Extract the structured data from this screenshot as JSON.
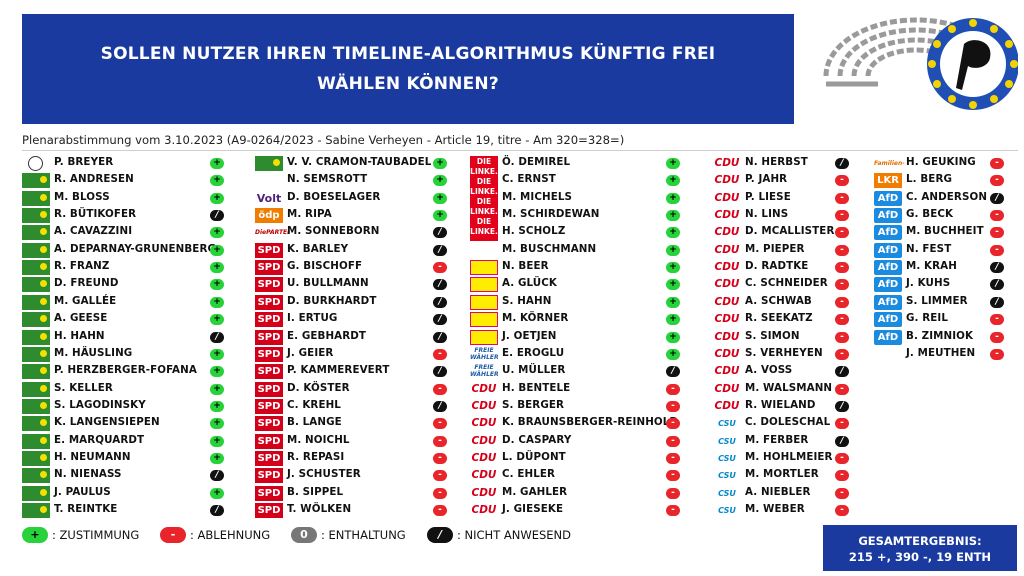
{
  "header": {
    "title": "SOLLEN NUTZER IHREN TIMELINE-ALGORITHMUS KÜNFTIG FREI WÄHLEN KÖNNEN?",
    "subtitle": "Plenarabstimmung vom 3.10.2023 (A9-0264/2023 - Sabine Verheyen - Article 19, titre - Am 320=328=)"
  },
  "colors": {
    "title_bg": "#1a3aa0",
    "yes": "#27d23a",
    "no": "#e8252a",
    "abstain": "#777777",
    "absent": "#111111"
  },
  "vote_symbols": {
    "yes": "+",
    "no": "-",
    "abstain": "0",
    "absent": "/"
  },
  "columns": [
    [
      {
        "name": "P. BREYER",
        "party": "Piraten",
        "vote": "yes"
      },
      {
        "name": "R. ANDRESEN",
        "party": "Grüne",
        "vote": "yes"
      },
      {
        "name": "M. BLOSS",
        "party": "Grüne",
        "vote": "yes"
      },
      {
        "name": "R. BÜTIKOFER",
        "party": "Grüne",
        "vote": "absent"
      },
      {
        "name": "A. CAVAZZINI",
        "party": "Grüne",
        "vote": "yes"
      },
      {
        "name": "A. DEPARNAY-GRUNENBERG",
        "party": "Grüne",
        "vote": "yes"
      },
      {
        "name": "R. FRANZ",
        "party": "Grüne",
        "vote": "yes"
      },
      {
        "name": "D. FREUND",
        "party": "Grüne",
        "vote": "yes"
      },
      {
        "name": "M. GALLÉE",
        "party": "Grüne",
        "vote": "yes"
      },
      {
        "name": "A. GEESE",
        "party": "Grüne",
        "vote": "yes"
      },
      {
        "name": "H. HAHN",
        "party": "Grüne",
        "vote": "absent"
      },
      {
        "name": "M. HÄUSLING",
        "party": "Grüne",
        "vote": "yes"
      },
      {
        "name": "P. HERZBERGER-FOFANA",
        "party": "Grüne",
        "vote": "yes"
      },
      {
        "name": "S. KELLER",
        "party": "Grüne",
        "vote": "yes"
      },
      {
        "name": "S. LAGODINSKY",
        "party": "Grüne",
        "vote": "yes"
      },
      {
        "name": "K. LANGENSIEPEN",
        "party": "Grüne",
        "vote": "yes"
      },
      {
        "name": "E. MARQUARDT",
        "party": "Grüne",
        "vote": "yes"
      },
      {
        "name": "H. NEUMANN",
        "party": "Grüne",
        "vote": "yes"
      },
      {
        "name": "N. NIENASS",
        "party": "Grüne",
        "vote": "absent"
      },
      {
        "name": "J. PAULUS",
        "party": "Grüne",
        "vote": "yes"
      },
      {
        "name": "T. REINTKE",
        "party": "Grüne",
        "vote": "absent"
      }
    ],
    [
      {
        "name": "V. V. CRAMON-TAUBADEL",
        "party": "Grüne",
        "vote": "yes"
      },
      {
        "name": "N. SEMSROTT",
        "party": "",
        "vote": "yes"
      },
      {
        "name": "D. BOESELAGER",
        "party": "Volt",
        "vote": "yes"
      },
      {
        "name": "M. RIPA",
        "party": "ödp",
        "vote": "yes"
      },
      {
        "name": "M. SONNEBORN",
        "party": "PARTEI",
        "vote": "absent"
      },
      {
        "name": "K. BARLEY",
        "party": "SPD",
        "vote": "absent"
      },
      {
        "name": "G. BISCHOFF",
        "party": "SPD",
        "vote": "no"
      },
      {
        "name": "U. BULLMANN",
        "party": "SPD",
        "vote": "absent"
      },
      {
        "name": "D. BURKHARDT",
        "party": "SPD",
        "vote": "absent"
      },
      {
        "name": "I. ERTUG",
        "party": "SPD",
        "vote": "absent"
      },
      {
        "name": "E. GEBHARDT",
        "party": "SPD",
        "vote": "absent"
      },
      {
        "name": "J. GEIER",
        "party": "SPD",
        "vote": "no"
      },
      {
        "name": "P. KAMMEREVERT",
        "party": "SPD",
        "vote": "absent"
      },
      {
        "name": "D. KÖSTER",
        "party": "SPD",
        "vote": "no"
      },
      {
        "name": "C. KREHL",
        "party": "SPD",
        "vote": "absent"
      },
      {
        "name": "B. LANGE",
        "party": "SPD",
        "vote": "no"
      },
      {
        "name": "M. NOICHL",
        "party": "SPD",
        "vote": "no"
      },
      {
        "name": "R. REPASI",
        "party": "SPD",
        "vote": "no"
      },
      {
        "name": "J. SCHUSTER",
        "party": "SPD",
        "vote": "no"
      },
      {
        "name": "B. SIPPEL",
        "party": "SPD",
        "vote": "no"
      },
      {
        "name": "T. WÖLKEN",
        "party": "SPD",
        "vote": "no"
      }
    ],
    [
      {
        "name": "Ö. DEMIREL",
        "party": "LINKE",
        "vote": "yes"
      },
      {
        "name": "C. ERNST",
        "party": "LINKE",
        "vote": "yes"
      },
      {
        "name": "M. MICHELS",
        "party": "LINKE",
        "vote": "yes"
      },
      {
        "name": "M. SCHIRDEWAN",
        "party": "LINKE",
        "vote": "yes"
      },
      {
        "name": "H. SCHOLZ",
        "party": "LINKE",
        "vote": "yes"
      },
      {
        "name": "M. BUSCHMANN",
        "party": "",
        "vote": "yes"
      },
      {
        "name": "N. BEER",
        "party": "FDP",
        "vote": "yes"
      },
      {
        "name": "A. GLÜCK",
        "party": "FDP",
        "vote": "yes"
      },
      {
        "name": "S. HAHN",
        "party": "FDP",
        "vote": "yes"
      },
      {
        "name": "M. KÖRNER",
        "party": "FDP",
        "vote": "yes"
      },
      {
        "name": "J. OETJEN",
        "party": "FDP",
        "vote": "yes"
      },
      {
        "name": "E. EROGLU",
        "party": "FW",
        "vote": "yes"
      },
      {
        "name": "U. MÜLLER",
        "party": "FW",
        "vote": "absent"
      },
      {
        "name": "H. BENTELE",
        "party": "CDU",
        "vote": "no"
      },
      {
        "name": "S. BERGER",
        "party": "CDU",
        "vote": "no"
      },
      {
        "name": "K. BRAUNSBERGER-REINHOLD",
        "party": "CDU",
        "vote": "no"
      },
      {
        "name": "D. CASPARY",
        "party": "CDU",
        "vote": "no"
      },
      {
        "name": "L. DÜPONT",
        "party": "CDU",
        "vote": "no"
      },
      {
        "name": "C. EHLER",
        "party": "CDU",
        "vote": "no"
      },
      {
        "name": "M. GAHLER",
        "party": "CDU",
        "vote": "no"
      },
      {
        "name": "J. GIESEKE",
        "party": "CDU",
        "vote": "no"
      }
    ],
    [
      {
        "name": "N. HERBST",
        "party": "CDU",
        "vote": "absent"
      },
      {
        "name": "P. JAHR",
        "party": "CDU",
        "vote": "no"
      },
      {
        "name": "P. LIESE",
        "party": "CDU",
        "vote": "no"
      },
      {
        "name": "N. LINS",
        "party": "CDU",
        "vote": "no"
      },
      {
        "name": "D. MCALLISTER",
        "party": "CDU",
        "vote": "no"
      },
      {
        "name": "M. PIEPER",
        "party": "CDU",
        "vote": "no"
      },
      {
        "name": "D. RADTKE",
        "party": "CDU",
        "vote": "no"
      },
      {
        "name": "C. SCHNEIDER",
        "party": "CDU",
        "vote": "no"
      },
      {
        "name": "A. SCHWAB",
        "party": "CDU",
        "vote": "no"
      },
      {
        "name": "R. SEEKATZ",
        "party": "CDU",
        "vote": "no"
      },
      {
        "name": "S. SIMON",
        "party": "CDU",
        "vote": "no"
      },
      {
        "name": "S. VERHEYEN",
        "party": "CDU",
        "vote": "no"
      },
      {
        "name": "A. VOSS",
        "party": "CDU",
        "vote": "absent"
      },
      {
        "name": "M. WALSMANN",
        "party": "CDU",
        "vote": "no"
      },
      {
        "name": "R. WIELAND",
        "party": "CDU",
        "vote": "absent"
      },
      {
        "name": "C. DOLESCHAL",
        "party": "CSU",
        "vote": "no"
      },
      {
        "name": "M. FERBER",
        "party": "CSU",
        "vote": "absent"
      },
      {
        "name": "M. HOHLMEIER",
        "party": "CSU",
        "vote": "no"
      },
      {
        "name": "M. MORTLER",
        "party": "CSU",
        "vote": "no"
      },
      {
        "name": "A. NIEBLER",
        "party": "CSU",
        "vote": "no"
      },
      {
        "name": "M. WEBER",
        "party": "CSU",
        "vote": "no"
      }
    ],
    [
      {
        "name": "H. GEUKING",
        "party": "Familie",
        "vote": "no"
      },
      {
        "name": "L. BERG",
        "party": "LKR",
        "vote": "no"
      },
      {
        "name": "C. ANDERSON",
        "party": "AfD",
        "vote": "absent"
      },
      {
        "name": "G. BECK",
        "party": "AfD",
        "vote": "no"
      },
      {
        "name": "M. BUCHHEIT",
        "party": "AfD",
        "vote": "no"
      },
      {
        "name": "N. FEST",
        "party": "AfD",
        "vote": "no"
      },
      {
        "name": "M. KRAH",
        "party": "AfD",
        "vote": "absent"
      },
      {
        "name": "J. KUHS",
        "party": "AfD",
        "vote": "absent"
      },
      {
        "name": "S. LIMMER",
        "party": "AfD",
        "vote": "absent"
      },
      {
        "name": "G. REIL",
        "party": "AfD",
        "vote": "no"
      },
      {
        "name": "B. ZIMNIOK",
        "party": "AfD",
        "vote": "no"
      },
      {
        "name": "J. MEUTHEN",
        "party": "",
        "vote": "no"
      }
    ]
  ],
  "party_badges": {
    "SPD": "SPD",
    "CDU": "CDU",
    "CSU": "CSU",
    "AfD": "AfD",
    "Volt": "Volt",
    "ödp": "ödp",
    "PARTEI": "DiePARTEI",
    "LKR": "LKR",
    "FW": "FREIE WÄHLER",
    "Familie": "Familien-Partei",
    "LINKE": "DIE LINKE."
  },
  "legend": [
    {
      "symbol": "+",
      "label": ": ZUSTIMMUNG",
      "vote": "yes"
    },
    {
      "symbol": "-",
      "label": ": ABLEHNUNG",
      "vote": "no"
    },
    {
      "symbol": "0",
      "label": ": ENTHALTUNG",
      "vote": "abstain"
    },
    {
      "symbol": "/",
      "label": ": NICHT ANWESEND",
      "vote": "absent"
    }
  ],
  "result": {
    "line1": "GESAMTERGEBNIS:",
    "line2": "215 +, 390 -, 19 ENTH"
  }
}
